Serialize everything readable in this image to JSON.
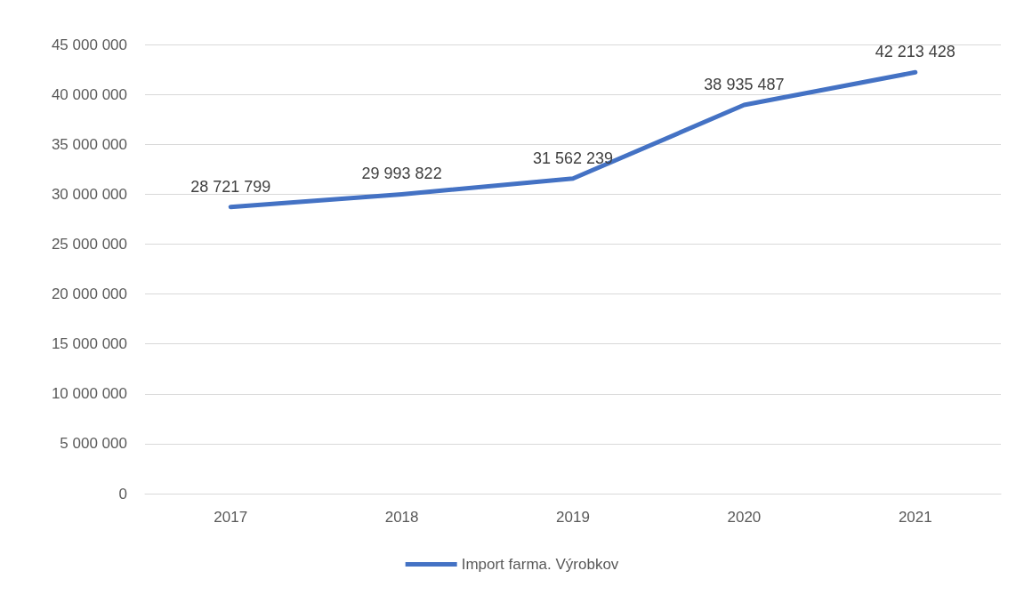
{
  "chart_data": {
    "type": "line",
    "categories": [
      "2017",
      "2018",
      "2019",
      "2020",
      "2021"
    ],
    "series": [
      {
        "name": "Import farma. Výrobkov",
        "color": "#4472c4",
        "values": [
          28721799,
          29993822,
          31562239,
          38935487,
          42213428
        ],
        "value_labels": [
          "28 721 799",
          "29 993 822",
          "31 562 239",
          "38 935 487",
          "42 213 428"
        ]
      }
    ],
    "ylim": [
      0,
      45000000
    ],
    "yticks": [
      {
        "value": 0,
        "label": "0"
      },
      {
        "value": 5000000,
        "label": "5 000 000"
      },
      {
        "value": 10000000,
        "label": "10 000 000"
      },
      {
        "value": 15000000,
        "label": "15 000 000"
      },
      {
        "value": 20000000,
        "label": "20 000 000"
      },
      {
        "value": 25000000,
        "label": "25 000 000"
      },
      {
        "value": 30000000,
        "label": "30 000 000"
      },
      {
        "value": 35000000,
        "label": "35 000 000"
      },
      {
        "value": 40000000,
        "label": "40 000 000"
      },
      {
        "value": 45000000,
        "label": "45 000 000"
      }
    ],
    "grid": "y",
    "legend": "bottom",
    "marker": "none",
    "line_style": "solid"
  }
}
